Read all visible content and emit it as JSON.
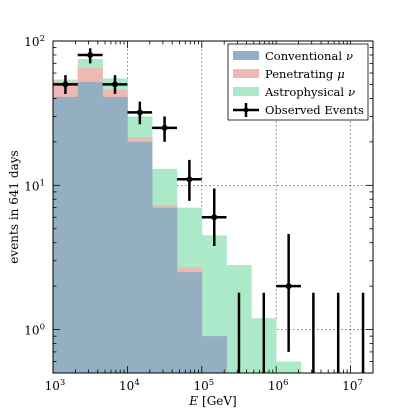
{
  "chart_data": {
    "type": "bar",
    "xlabel_var": "E",
    "xlabel_unit": "[GeV]",
    "ylabel": "events in 641 days",
    "xscale": "log",
    "yscale": "log",
    "xlim": [
      1000,
      20000000
    ],
    "ylim": [
      0.5,
      100
    ],
    "grid": true,
    "legend_position": "top-right",
    "x_ticks": [
      {
        "value": 1000,
        "base": "10",
        "exp": "3"
      },
      {
        "value": 10000,
        "base": "10",
        "exp": "4"
      },
      {
        "value": 100000,
        "base": "10",
        "exp": "5"
      },
      {
        "value": 1000000,
        "base": "10",
        "exp": "6"
      },
      {
        "value": 10000000,
        "base": "10",
        "exp": "7"
      }
    ],
    "y_ticks": [
      {
        "value": 1,
        "base": "10",
        "exp": "0"
      },
      {
        "value": 10,
        "base": "10",
        "exp": "1"
      },
      {
        "value": 100,
        "base": "10",
        "exp": "2"
      }
    ],
    "bin_edges": [
      1000,
      2150,
      4640,
      10000,
      21500,
      46400,
      100000,
      215000,
      464000,
      1000000,
      2150000,
      4640000,
      10000000,
      21500000
    ],
    "series": [
      {
        "name": "Conventional ν",
        "name_base": "Conventional",
        "name_symbol": "ν",
        "color": "#94afc1",
        "values": [
          41,
          52,
          41,
          20,
          7,
          2.5,
          0.9,
          0.5,
          0.5,
          0.5,
          0.5,
          0.5,
          0.5
        ]
      },
      {
        "name": "Penetrating μ",
        "name_base": "Penetrating",
        "name_symbol": "μ",
        "color": "#efb9b3",
        "values": [
          52,
          65,
          46,
          21.5,
          7.3,
          2.7,
          0.9,
          0.5,
          0.5,
          0.5,
          0.5,
          0.5,
          0.5
        ]
      },
      {
        "name": "Astrophysical ν",
        "name_base": "Astrophysical",
        "name_symbol": "ν",
        "color": "#abe9c9",
        "values": [
          54,
          75,
          55,
          30,
          13,
          7,
          4.5,
          2.8,
          1.2,
          0.6,
          0.5,
          0.5,
          0.5
        ]
      }
    ],
    "observed": {
      "name": "Observed Events",
      "points": [
        {
          "x": 1470,
          "y": 50,
          "ylo": 43,
          "yhi": 58
        },
        {
          "x": 3160,
          "y": 80,
          "ylo": 70,
          "yhi": 89
        },
        {
          "x": 6810,
          "y": 50,
          "ylo": 43,
          "yhi": 58
        },
        {
          "x": 14700,
          "y": 32,
          "ylo": 26.5,
          "yhi": 38
        },
        {
          "x": 31600,
          "y": 25,
          "ylo": 20,
          "yhi": 30
        },
        {
          "x": 68100,
          "y": 11,
          "ylo": 7.8,
          "yhi": 15
        },
        {
          "x": 147000,
          "y": 6,
          "ylo": 3.8,
          "yhi": 9.5
        },
        {
          "x": 316000,
          "y": 0,
          "ylo": 0,
          "yhi": 1.8
        },
        {
          "x": 681000,
          "y": 0,
          "ylo": 0,
          "yhi": 1.8
        },
        {
          "x": 1470000,
          "y": 2,
          "ylo": 0.7,
          "yhi": 4.6
        },
        {
          "x": 3160000,
          "y": 0,
          "ylo": 0,
          "yhi": 1.8
        },
        {
          "x": 6810000,
          "y": 0,
          "ylo": 0,
          "yhi": 1.8
        },
        {
          "x": 14700000,
          "y": 0,
          "ylo": 0,
          "yhi": 1.8
        }
      ]
    }
  }
}
